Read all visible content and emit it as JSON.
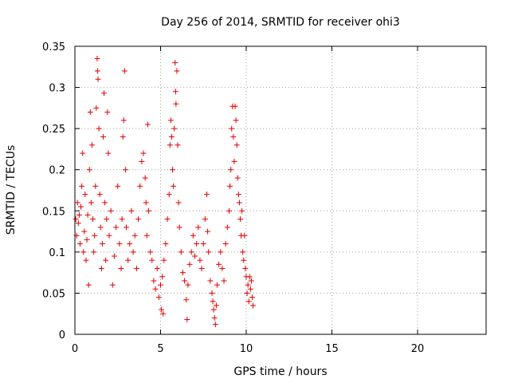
{
  "chart_data": {
    "type": "scatter",
    "title": "Day 256 of 2014, SRMTID for receiver ohi3",
    "xlabel": "GPS time / hours",
    "ylabel": "SRMTID / TECUs",
    "xlim": [
      0,
      24
    ],
    "ylim": [
      0,
      0.35
    ],
    "xticks": [
      0,
      5,
      10,
      15,
      20
    ],
    "xtick_labels": [
      "0",
      "5",
      "10",
      "15",
      "20"
    ],
    "yticks": [
      0,
      0.05,
      0.1,
      0.15,
      0.2,
      0.25,
      0.3,
      0.35
    ],
    "ytick_labels": [
      "0",
      "0.05",
      "0.1",
      "0.15",
      "0.2",
      "0.25",
      "0.3",
      "0.35"
    ],
    "grid": true,
    "marker": "+",
    "color": "#e00000",
    "series": [
      {
        "name": "SRMTID",
        "points": [
          [
            0.05,
            0.14
          ],
          [
            0.1,
            0.12
          ],
          [
            0.15,
            0.16
          ],
          [
            0.2,
            0.135
          ],
          [
            0.25,
            0.145
          ],
          [
            0.3,
            0.11
          ],
          [
            0.35,
            0.155
          ],
          [
            0.4,
            0.18
          ],
          [
            0.45,
            0.22
          ],
          [
            0.5,
            0.1
          ],
          [
            0.55,
            0.125
          ],
          [
            0.6,
            0.17
          ],
          [
            0.65,
            0.09
          ],
          [
            0.7,
            0.115
          ],
          [
            0.75,
            0.145
          ],
          [
            0.8,
            0.06
          ],
          [
            0.85,
            0.2
          ],
          [
            0.9,
            0.27
          ],
          [
            0.95,
            0.16
          ],
          [
            1.0,
            0.23
          ],
          [
            1.05,
            0.14
          ],
          [
            1.1,
            0.1
          ],
          [
            1.15,
            0.12
          ],
          [
            1.2,
            0.18
          ],
          [
            1.25,
            0.275
          ],
          [
            1.3,
            0.335
          ],
          [
            1.32,
            0.32
          ],
          [
            1.35,
            0.31
          ],
          [
            1.4,
            0.25
          ],
          [
            1.45,
            0.17
          ],
          [
            1.5,
            0.13
          ],
          [
            1.55,
            0.08
          ],
          [
            1.6,
            0.11
          ],
          [
            1.65,
            0.24
          ],
          [
            1.7,
            0.293
          ],
          [
            1.75,
            0.16
          ],
          [
            1.8,
            0.09
          ],
          [
            1.85,
            0.14
          ],
          [
            1.9,
            0.27
          ],
          [
            1.95,
            0.22
          ],
          [
            2.0,
            0.12
          ],
          [
            2.1,
            0.15
          ],
          [
            2.2,
            0.06
          ],
          [
            2.3,
            0.095
          ],
          [
            2.4,
            0.13
          ],
          [
            2.5,
            0.18
          ],
          [
            2.6,
            0.11
          ],
          [
            2.7,
            0.08
          ],
          [
            2.75,
            0.14
          ],
          [
            2.8,
            0.24
          ],
          [
            2.85,
            0.26
          ],
          [
            2.9,
            0.32
          ],
          [
            2.95,
            0.2
          ],
          [
            3.0,
            0.13
          ],
          [
            3.1,
            0.09
          ],
          [
            3.2,
            0.11
          ],
          [
            3.3,
            0.15
          ],
          [
            3.4,
            0.1
          ],
          [
            3.5,
            0.12
          ],
          [
            3.6,
            0.08
          ],
          [
            3.7,
            0.14
          ],
          [
            3.8,
            0.18
          ],
          [
            3.9,
            0.21
          ],
          [
            4.0,
            0.22
          ],
          [
            4.1,
            0.19
          ],
          [
            4.15,
            0.16
          ],
          [
            4.2,
            0.12
          ],
          [
            4.25,
            0.255
          ],
          [
            4.3,
            0.15
          ],
          [
            4.4,
            0.1
          ],
          [
            4.5,
            0.09
          ],
          [
            4.6,
            0.065
          ],
          [
            4.7,
            0.055
          ],
          [
            4.8,
            0.08
          ],
          [
            4.9,
            0.045
          ],
          [
            5.0,
            0.06
          ],
          [
            5.05,
            0.03
          ],
          [
            5.1,
            0.07
          ],
          [
            5.15,
            0.025
          ],
          [
            5.2,
            0.09
          ],
          [
            5.3,
            0.11
          ],
          [
            5.4,
            0.14
          ],
          [
            5.5,
            0.17
          ],
          [
            5.55,
            0.23
          ],
          [
            5.6,
            0.26
          ],
          [
            5.65,
            0.24
          ],
          [
            5.7,
            0.2
          ],
          [
            5.75,
            0.18
          ],
          [
            5.8,
            0.25
          ],
          [
            5.85,
            0.33
          ],
          [
            5.88,
            0.295
          ],
          [
            5.9,
            0.28
          ],
          [
            5.95,
            0.32
          ],
          [
            6.0,
            0.23
          ],
          [
            6.05,
            0.16
          ],
          [
            6.1,
            0.13
          ],
          [
            6.2,
            0.1
          ],
          [
            6.3,
            0.075
          ],
          [
            6.4,
            0.065
          ],
          [
            6.5,
            0.042
          ],
          [
            6.55,
            0.018
          ],
          [
            6.6,
            0.06
          ],
          [
            6.7,
            0.085
          ],
          [
            6.8,
            0.1
          ],
          [
            6.9,
            0.12
          ],
          [
            7.0,
            0.095
          ],
          [
            7.1,
            0.11
          ],
          [
            7.2,
            0.13
          ],
          [
            7.3,
            0.09
          ],
          [
            7.4,
            0.08
          ],
          [
            7.5,
            0.11
          ],
          [
            7.6,
            0.14
          ],
          [
            7.7,
            0.17
          ],
          [
            7.75,
            0.125
          ],
          [
            7.8,
            0.1
          ],
          [
            7.9,
            0.065
          ],
          [
            8.0,
            0.05
          ],
          [
            8.05,
            0.04
          ],
          [
            8.1,
            0.03
          ],
          [
            8.15,
            0.02
          ],
          [
            8.2,
            0.012
          ],
          [
            8.25,
            0.035
          ],
          [
            8.3,
            0.06
          ],
          [
            8.4,
            0.085
          ],
          [
            8.5,
            0.1
          ],
          [
            8.6,
            0.08
          ],
          [
            8.7,
            0.065
          ],
          [
            8.8,
            0.11
          ],
          [
            8.9,
            0.13
          ],
          [
            9.0,
            0.15
          ],
          [
            9.05,
            0.18
          ],
          [
            9.1,
            0.2
          ],
          [
            9.15,
            0.25
          ],
          [
            9.2,
            0.277
          ],
          [
            9.25,
            0.24
          ],
          [
            9.3,
            0.21
          ],
          [
            9.35,
            0.277
          ],
          [
            9.4,
            0.26
          ],
          [
            9.45,
            0.23
          ],
          [
            9.5,
            0.19
          ],
          [
            9.55,
            0.17
          ],
          [
            9.6,
            0.16
          ],
          [
            9.65,
            0.14
          ],
          [
            9.7,
            0.12
          ],
          [
            9.75,
            0.15
          ],
          [
            9.8,
            0.1
          ],
          [
            9.85,
            0.09
          ],
          [
            9.9,
            0.12
          ],
          [
            9.95,
            0.08
          ],
          [
            10.0,
            0.07
          ],
          [
            10.05,
            0.05
          ],
          [
            10.1,
            0.06
          ],
          [
            10.15,
            0.04
          ],
          [
            10.2,
            0.07
          ],
          [
            10.25,
            0.055
          ],
          [
            10.3,
            0.065
          ],
          [
            10.35,
            0.045
          ],
          [
            10.4,
            0.035
          ]
        ]
      }
    ]
  }
}
